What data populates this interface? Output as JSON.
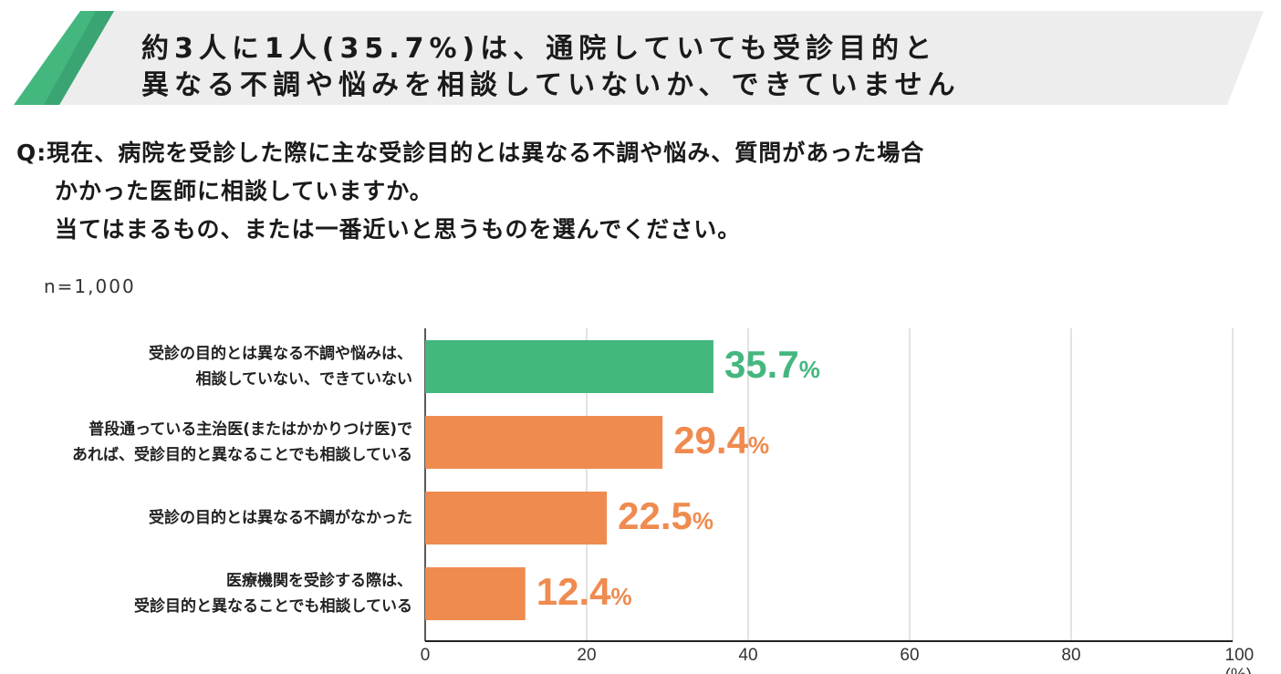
{
  "header": {
    "title_line1": "約3人に1人(35.7%)は、通院していても受診目的と",
    "title_line2": "異なる不調や悩みを相談していないか、できていません"
  },
  "question": {
    "line1": "Q:現在、病院を受診した際に主な受診目的とは異なる不調や悩み、質問があった場合",
    "line2": "かかった医師に相談していますか。",
    "line3": "当てはまるもの、または一番近いと思うものを選んでください。"
  },
  "sample": "n=1,000",
  "chart_data": {
    "type": "bar",
    "orientation": "horizontal",
    "categories": [
      [
        "受診の目的とは異なる不調や悩みは、",
        "相談していない、できていない"
      ],
      [
        "普段通っている主治医(またはかかりつけ医)で",
        "あれば、受診目的と異なることでも相談している"
      ],
      [
        "受診の目的とは異なる不調がなかった"
      ],
      [
        "医療機関を受診する際は、",
        "受診目的と異なることでも相談している"
      ]
    ],
    "values": [
      35.7,
      29.4,
      22.5,
      12.4
    ],
    "labels": [
      "35.7",
      "29.4",
      "22.5",
      "12.4"
    ],
    "unit": "%",
    "colors": [
      "#44b77f",
      "#ef8b4f",
      "#ef8b4f",
      "#ef8b4f"
    ],
    "xlim": [
      0,
      100
    ],
    "xticks": [
      "0",
      "20",
      "40",
      "60",
      "80",
      "100 (%)"
    ],
    "grid": true
  },
  "colors": {
    "green": "#44b77f",
    "orange": "#ef8b4f",
    "banner": "#ededed"
  }
}
